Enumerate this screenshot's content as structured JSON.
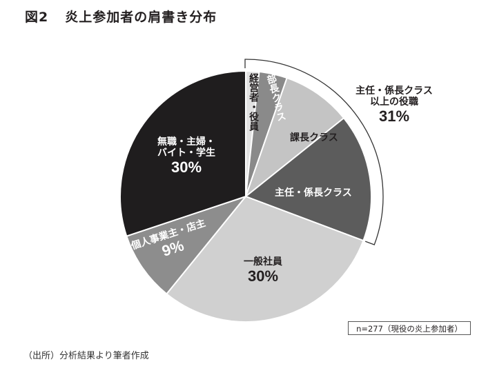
{
  "figure": {
    "number": "図2",
    "title": "炎上参加者の肩書き分布",
    "sample_note": "n=277（現役の炎上参加者）",
    "source": "（出所）分析結果より筆者作成"
  },
  "labels": {
    "keiei": "経営者・役員",
    "bucho": "部長クラス",
    "kacho": "課長クラス",
    "shunin": "主任・係長クラス",
    "ippan": "一般社員",
    "ippan_pct": "30%",
    "kojin": "個人事業主・店主",
    "kojin_pct": "9%",
    "mushoku_line1": "無職・主婦・",
    "mushoku_line2": "バイト・学生",
    "mushoku_pct": "30%",
    "group_line1": "主任・係長クラス",
    "group_line2": "以上の役職",
    "group_pct": "31%"
  },
  "chart_data": {
    "type": "pie",
    "title": "炎上参加者の肩書き分布",
    "note": "n=277（現役の炎上参加者）",
    "start_angle_deg": 0,
    "direction": "clockwise",
    "slices": [
      {
        "label": "経営者・役員",
        "value": 1.7,
        "color": "#e2e2e2",
        "shown_label": false
      },
      {
        "label": "部長クラス",
        "value": 3.6,
        "color": "#8a8a8a",
        "shown_label": false
      },
      {
        "label": "課長クラス",
        "value": 8.9,
        "color": "#c4c4c4",
        "shown_label": false
      },
      {
        "label": "主任・係長クラス",
        "value": 16.4,
        "color": "#5c5c5c",
        "shown_label": false
      },
      {
        "label": "一般社員",
        "value": 30,
        "color": "#d0d0d0",
        "shown_label": true
      },
      {
        "label": "個人事業主・店主",
        "value": 9,
        "color": "#8d8d8d",
        "shown_label": true
      },
      {
        "label": "無職・主婦・バイト・学生",
        "value": 30,
        "color": "#1f1d1e",
        "shown_label": true
      }
    ],
    "groups": [
      {
        "label": "主任・係長クラス以上の役職",
        "value": 31,
        "members": [
          "経営者・役員",
          "部長クラス",
          "課長クラス",
          "主任・係長クラス"
        ]
      }
    ],
    "legend": "none (labels placed on slices)"
  }
}
